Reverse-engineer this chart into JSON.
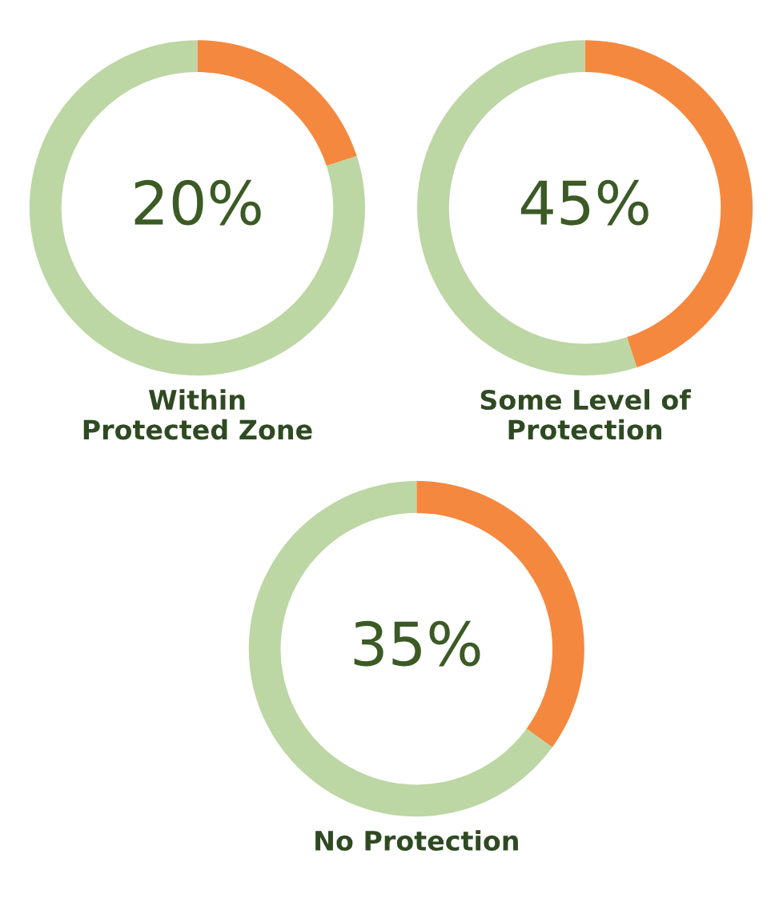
{
  "chart_data": [
    {
      "type": "donut",
      "title": "Within\nProtected Zone",
      "categories": [
        null,
        null
      ],
      "values": [
        20,
        80
      ],
      "colors": [
        "#f5883f",
        "#bcd6a4"
      ],
      "value_labels": [
        "20%",
        null
      ]
    },
    {
      "type": "donut",
      "title": "Some Level of\nProtection",
      "categories": [
        null,
        null
      ],
      "values": [
        45,
        55
      ],
      "colors": [
        "#f5883f",
        "#bcd6a4"
      ],
      "value_labels": [
        "45%",
        null
      ]
    },
    {
      "type": "donut",
      "title": "No Protection",
      "categories": [
        null,
        null
      ],
      "values": [
        35,
        65
      ],
      "colors": [
        "#f5883f",
        "#bcd6a4"
      ],
      "value_labels": [
        "35%",
        null
      ]
    }
  ]
}
